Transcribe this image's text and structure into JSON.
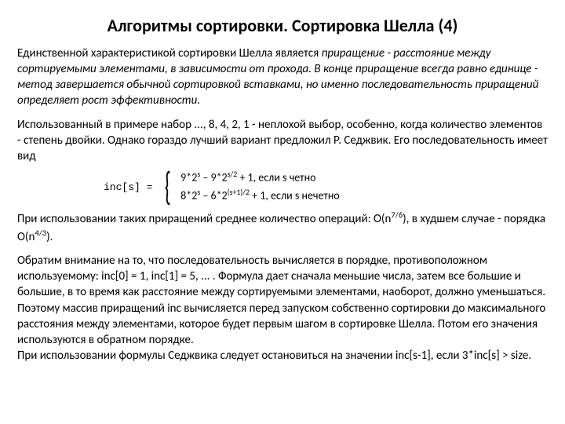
{
  "title": "Алгоритмы сортировки. Сортировка Шелла (4)",
  "p1_a": "Единственной характеристикой сортировки Шелла является ",
  "p1_b": "приращение - расстояние между сортируемыми элементами, в зависимости от прохода. В конце приращение всегда равно единице - метод завершается обычной сортировкой вставками, но именно последовательность приращений определяет рост эффективности.",
  "p2": "Использованный в примере набор ..., 8, 4, 2, 1 - неплохой выбор, особенно, когда количество элементов - степень двойки. Однако гораздо лучший вариант предложил Р. Седжвик. Его последовательность имеет вид",
  "formula": {
    "lhs": "inc[s]  =",
    "case1_a": "9*2",
    "case1_exp1": "s",
    "case1_b": " – 9*2",
    "case1_exp2": "s/2",
    "case1_c": " + 1, если s четно",
    "case2_a": "8*2",
    "case2_exp1": "s",
    "case2_b": " – 6*2",
    "case2_exp2": "(s+1)/2",
    "case2_c": " + 1, если s нечетно"
  },
  "p3_a": "При использовании таких приращений среднее количество операций: O(n",
  "p3_exp1": "7/6",
  "p3_b": "), в худшем случае - порядка O(n",
  "p3_exp2": "4/3",
  "p3_c": ").",
  "p4": "Обратим внимание на то, что последовательность вычисляется в порядке, противоположном используемому: inc[0] = 1, inc[1] = 5, ... . Формула дает сначала меньшие числа, затем все большие и большие, в то время как расстояние между сортируемыми элементами, наоборот, должно уменьшаться. Поэтому массив приращений inc вычисляется перед запуском собственно сортировки до максимального расстояния между элементами, которое будет первым шагом в сортировке Шелла. Потом его значения используются в обратном порядке.",
  "p5": "При использовании формулы Седжвика следует остановиться на значении inc[s-1], если 3*inc[s] > size."
}
